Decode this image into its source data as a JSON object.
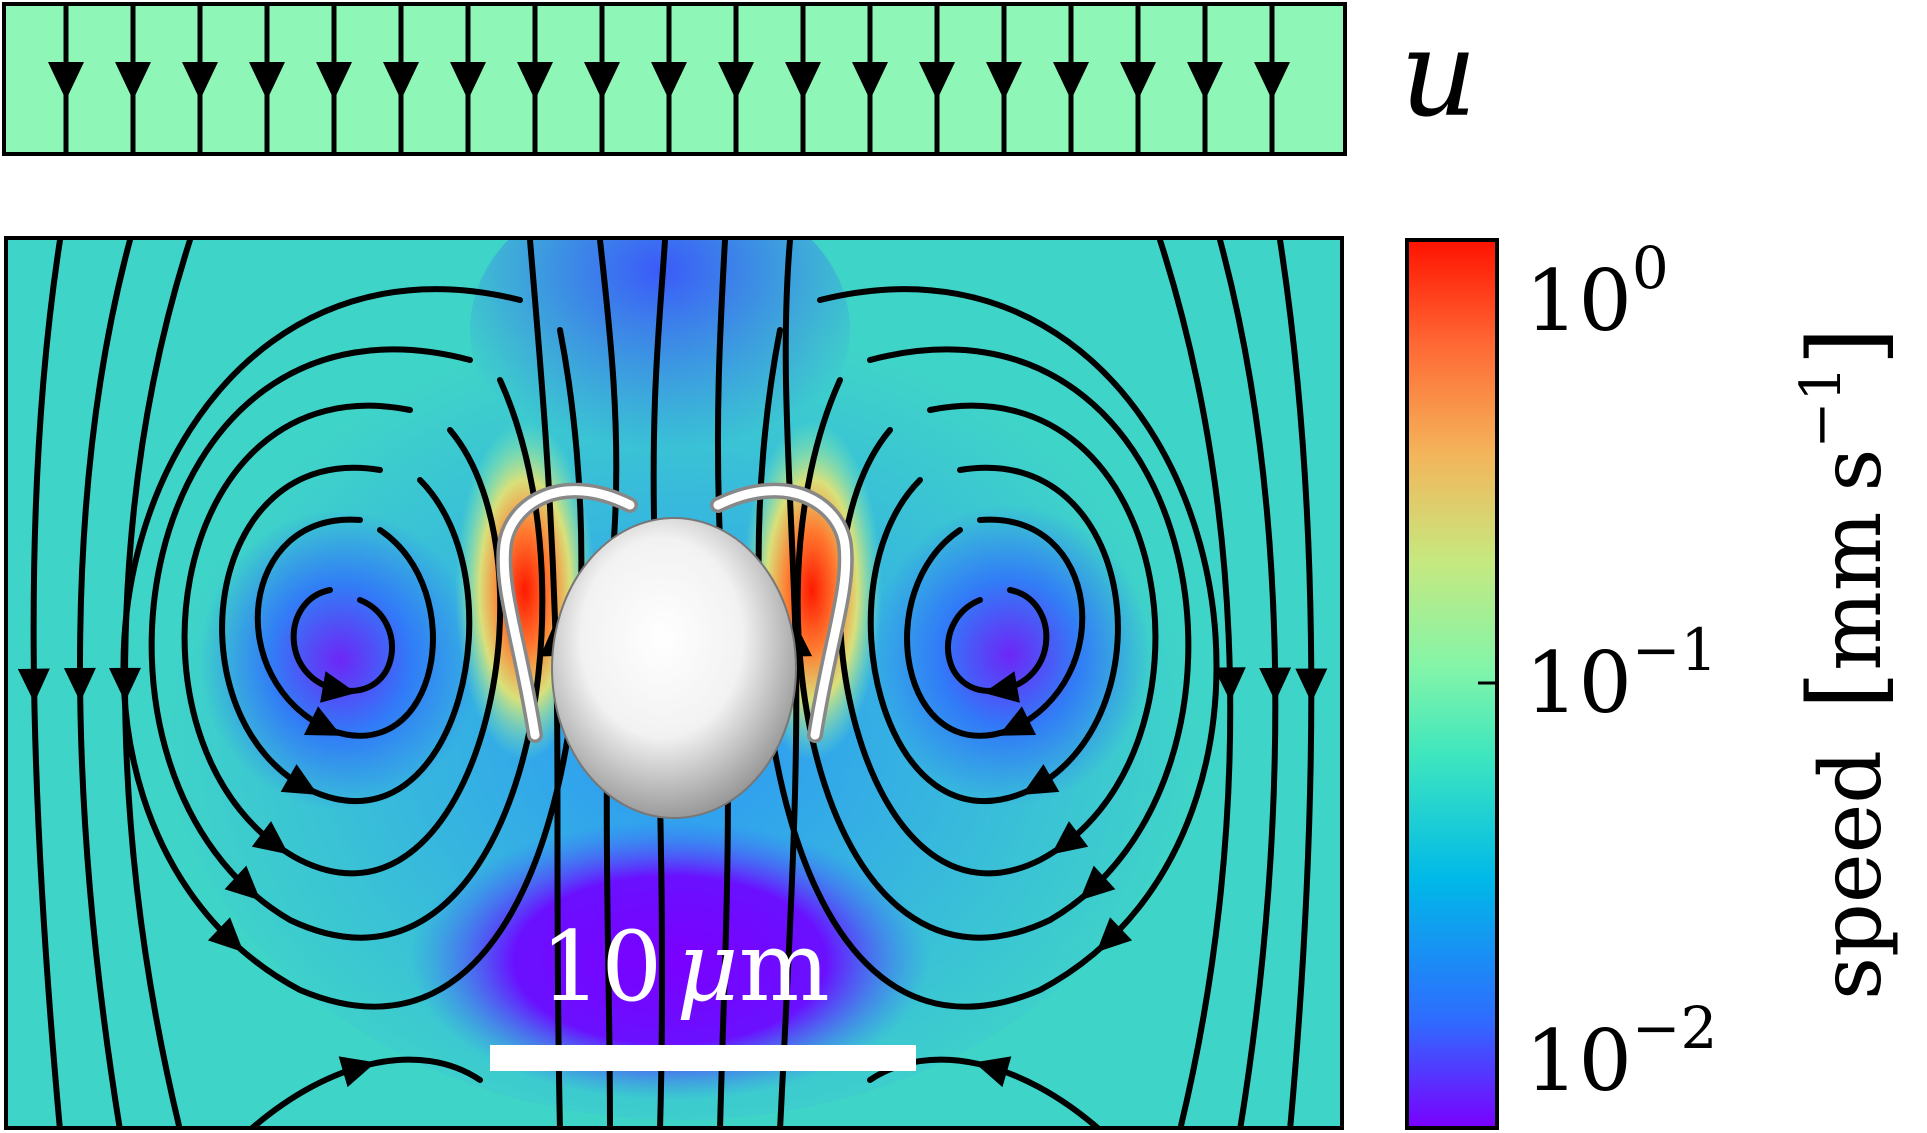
{
  "flow_label": "u",
  "scale_bar": {
    "value": "10",
    "unit_symbol": "μ",
    "unit_rest": "m"
  },
  "colorbar": {
    "label": "speed",
    "unit_mm": "mm",
    "unit_s": "s",
    "unit_exp": "−1",
    "ticks": [
      {
        "base": "10",
        "exp": "0"
      },
      {
        "base": "10",
        "exp": "−1"
      },
      {
        "base": "10",
        "exp": "−2"
      }
    ],
    "scale": "log",
    "range": [
      0.01,
      1.0
    ],
    "colormap": [
      "#7a00ff",
      "#2f6bff",
      "#00b9e8",
      "#3ee6be",
      "#84f5a8",
      "#c7e87f",
      "#f4b45a",
      "#ff6a35",
      "#ff1200"
    ]
  },
  "colors": {
    "background_field": "#3fd4c8",
    "inflow_band": "#8ef7b7",
    "streamline": "#000000",
    "cilia": "#ffffff",
    "cell_body": "#ffffff",
    "scale_bar": "#ffffff"
  }
}
